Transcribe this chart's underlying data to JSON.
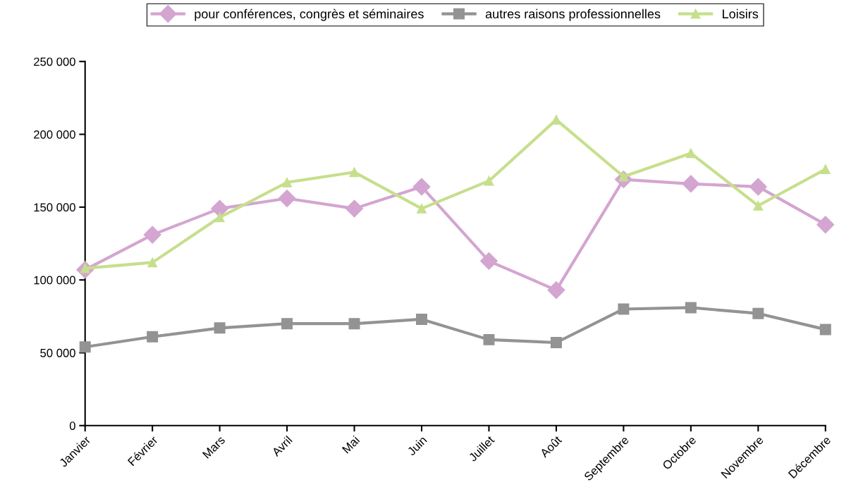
{
  "chart_data": {
    "type": "line",
    "categories": [
      "Janvier",
      "Février",
      "Mars",
      "Avril",
      "Mai",
      "Juin",
      "Juillet",
      "Août",
      "Septembre",
      "Octobre",
      "Novembre",
      "Décembre"
    ],
    "series": [
      {
        "name": "pour conférences, congrès et séminaires",
        "color": "#d4a5d1",
        "marker": "diamond",
        "values": [
          107000,
          131000,
          149000,
          156000,
          149000,
          164000,
          113000,
          93000,
          169000,
          166000,
          164000,
          138000
        ]
      },
      {
        "name": "autres raisons professionnelles",
        "color": "#939393",
        "marker": "square",
        "values": [
          54000,
          61000,
          67000,
          70000,
          70000,
          73000,
          59000,
          57000,
          80000,
          81000,
          77000,
          66000
        ]
      },
      {
        "name": "Loisirs",
        "color": "#c6df8c",
        "marker": "triangle",
        "values": [
          108000,
          112000,
          143000,
          167000,
          174000,
          149000,
          168000,
          210000,
          171000,
          187000,
          151000,
          176000
        ]
      }
    ],
    "ylim": [
      0,
      250000
    ],
    "yticks": [
      {
        "value": 0,
        "label": "0"
      },
      {
        "value": 50000,
        "label": "50 000"
      },
      {
        "value": 100000,
        "label": "100 000"
      },
      {
        "value": 150000,
        "label": "150 000"
      },
      {
        "value": 200000,
        "label": "200 000"
      },
      {
        "value": 250000,
        "label": "250 000"
      }
    ],
    "grid": false,
    "legend": "top",
    "line_style": "solid"
  }
}
